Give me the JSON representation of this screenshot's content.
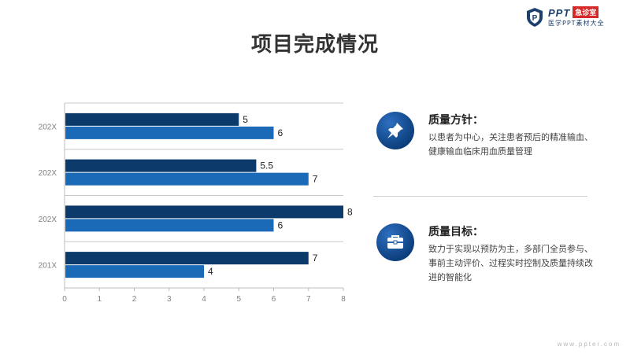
{
  "logo": {
    "brand": "PPT",
    "tag": "急诊室",
    "subtitle": "医学PPT素材大全"
  },
  "page": {
    "title": "项目完成情况"
  },
  "chart_data": {
    "type": "bar",
    "orientation": "horizontal",
    "categories": [
      "202X",
      "202X",
      "202X",
      "201X"
    ],
    "series": [
      {
        "values": [
          5,
          5.5,
          8,
          7
        ],
        "color": "#0b3a6b"
      },
      {
        "values": [
          6,
          7,
          6,
          4
        ],
        "color": "#1a6ab8"
      }
    ],
    "data_labels": [
      [
        "5",
        "5.5",
        "8",
        "7"
      ],
      [
        "6",
        "7",
        "6",
        "4"
      ]
    ],
    "x_ticks": [
      "0",
      "1",
      "2",
      "3",
      "4",
      "5",
      "6",
      "7",
      "8"
    ],
    "xlim": [
      0,
      8
    ],
    "grid": true
  },
  "items": [
    {
      "title": "质量方针：",
      "text": "以患者为中心，关注患者预后的精准输血、健康输血临床用血质量管理",
      "icon": "pushpin-icon"
    },
    {
      "title": "质量目标：",
      "text": "致力于实现以预防为主，多部门全员参与、事前主动评价、过程实时控制及质量持续改进的智能化",
      "icon": "briefcase-icon"
    }
  ],
  "footer": {
    "url": "www.ppter.com"
  }
}
